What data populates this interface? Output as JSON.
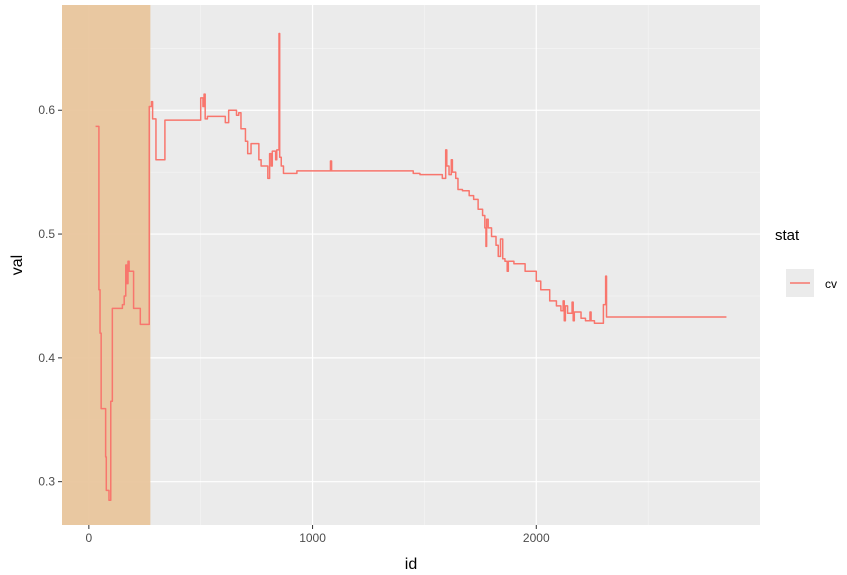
{
  "chart_data": {
    "type": "line",
    "title": "",
    "xlabel": "id",
    "ylabel": "val",
    "xlim": [
      -120,
      3000
    ],
    "ylim": [
      0.265,
      0.685
    ],
    "x_ticks": [
      0,
      1000,
      2000
    ],
    "x_tick_labels": [
      "0",
      "1000",
      "2000"
    ],
    "y_ticks": [
      0.3,
      0.4,
      0.5,
      0.6
    ],
    "y_tick_labels": [
      "0.3",
      "0.4",
      "0.5",
      "0.6"
    ],
    "grid": true,
    "highlight_region": {
      "x_start": -120,
      "x_end": 275,
      "color": "#e8c49a"
    },
    "legend": {
      "title": "stat",
      "position": "right"
    },
    "series": [
      {
        "name": "cv",
        "color": "#f8766d",
        "points": [
          [
            30,
            0.587
          ],
          [
            45,
            0.587
          ],
          [
            45,
            0.455
          ],
          [
            50,
            0.455
          ],
          [
            50,
            0.42
          ],
          [
            55,
            0.42
          ],
          [
            55,
            0.359
          ],
          [
            75,
            0.359
          ],
          [
            75,
            0.32
          ],
          [
            78,
            0.32
          ],
          [
            78,
            0.293
          ],
          [
            90,
            0.293
          ],
          [
            90,
            0.285
          ],
          [
            98,
            0.285
          ],
          [
            98,
            0.365
          ],
          [
            105,
            0.365
          ],
          [
            105,
            0.44
          ],
          [
            150,
            0.44
          ],
          [
            150,
            0.443
          ],
          [
            158,
            0.443
          ],
          [
            158,
            0.45
          ],
          [
            165,
            0.45
          ],
          [
            165,
            0.475
          ],
          [
            170,
            0.475
          ],
          [
            170,
            0.46
          ],
          [
            175,
            0.46
          ],
          [
            175,
            0.478
          ],
          [
            180,
            0.478
          ],
          [
            180,
            0.47
          ],
          [
            200,
            0.47
          ],
          [
            200,
            0.44
          ],
          [
            230,
            0.44
          ],
          [
            230,
            0.427
          ],
          [
            270,
            0.427
          ],
          [
            270,
            0.603
          ],
          [
            280,
            0.603
          ],
          [
            280,
            0.607
          ],
          [
            285,
            0.607
          ],
          [
            285,
            0.593
          ],
          [
            300,
            0.593
          ],
          [
            300,
            0.56
          ],
          [
            340,
            0.56
          ],
          [
            340,
            0.592
          ],
          [
            500,
            0.592
          ],
          [
            500,
            0.61
          ],
          [
            510,
            0.61
          ],
          [
            510,
            0.603
          ],
          [
            515,
            0.603
          ],
          [
            515,
            0.613
          ],
          [
            520,
            0.613
          ],
          [
            520,
            0.593
          ],
          [
            530,
            0.593
          ],
          [
            530,
            0.595
          ],
          [
            610,
            0.595
          ],
          [
            610,
            0.59
          ],
          [
            625,
            0.59
          ],
          [
            625,
            0.6
          ],
          [
            660,
            0.6
          ],
          [
            660,
            0.596
          ],
          [
            670,
            0.596
          ],
          [
            670,
            0.598
          ],
          [
            680,
            0.598
          ],
          [
            680,
            0.585
          ],
          [
            700,
            0.585
          ],
          [
            700,
            0.575
          ],
          [
            710,
            0.575
          ],
          [
            710,
            0.565
          ],
          [
            725,
            0.565
          ],
          [
            725,
            0.573
          ],
          [
            760,
            0.573
          ],
          [
            760,
            0.56
          ],
          [
            770,
            0.56
          ],
          [
            770,
            0.555
          ],
          [
            800,
            0.555
          ],
          [
            800,
            0.545
          ],
          [
            808,
            0.545
          ],
          [
            808,
            0.565
          ],
          [
            815,
            0.565
          ],
          [
            815,
            0.555
          ],
          [
            820,
            0.555
          ],
          [
            820,
            0.567
          ],
          [
            835,
            0.567
          ],
          [
            835,
            0.56
          ],
          [
            840,
            0.56
          ],
          [
            840,
            0.568
          ],
          [
            850,
            0.568
          ],
          [
            850,
            0.662
          ],
          [
            853,
            0.662
          ],
          [
            853,
            0.562
          ],
          [
            860,
            0.562
          ],
          [
            860,
            0.555
          ],
          [
            870,
            0.555
          ],
          [
            870,
            0.549
          ],
          [
            930,
            0.549
          ],
          [
            930,
            0.551
          ],
          [
            1080,
            0.551
          ],
          [
            1080,
            0.559
          ],
          [
            1085,
            0.559
          ],
          [
            1085,
            0.551
          ],
          [
            1450,
            0.551
          ],
          [
            1450,
            0.549
          ],
          [
            1480,
            0.549
          ],
          [
            1480,
            0.548
          ],
          [
            1580,
            0.548
          ],
          [
            1580,
            0.545
          ],
          [
            1595,
            0.545
          ],
          [
            1595,
            0.568
          ],
          [
            1600,
            0.568
          ],
          [
            1600,
            0.555
          ],
          [
            1610,
            0.555
          ],
          [
            1610,
            0.548
          ],
          [
            1620,
            0.548
          ],
          [
            1620,
            0.56
          ],
          [
            1625,
            0.56
          ],
          [
            1625,
            0.55
          ],
          [
            1640,
            0.55
          ],
          [
            1640,
            0.545
          ],
          [
            1650,
            0.545
          ],
          [
            1650,
            0.536
          ],
          [
            1670,
            0.536
          ],
          [
            1670,
            0.535
          ],
          [
            1700,
            0.535
          ],
          [
            1700,
            0.531
          ],
          [
            1720,
            0.531
          ],
          [
            1720,
            0.528
          ],
          [
            1740,
            0.528
          ],
          [
            1740,
            0.52
          ],
          [
            1760,
            0.52
          ],
          [
            1760,
            0.515
          ],
          [
            1770,
            0.515
          ],
          [
            1770,
            0.505
          ],
          [
            1775,
            0.505
          ],
          [
            1775,
            0.49
          ],
          [
            1778,
            0.49
          ],
          [
            1778,
            0.512
          ],
          [
            1785,
            0.512
          ],
          [
            1785,
            0.505
          ],
          [
            1800,
            0.505
          ],
          [
            1800,
            0.498
          ],
          [
            1820,
            0.498
          ],
          [
            1820,
            0.491
          ],
          [
            1830,
            0.491
          ],
          [
            1830,
            0.482
          ],
          [
            1840,
            0.482
          ],
          [
            1840,
            0.496
          ],
          [
            1850,
            0.496
          ],
          [
            1850,
            0.48
          ],
          [
            1860,
            0.48
          ],
          [
            1860,
            0.478
          ],
          [
            1870,
            0.478
          ],
          [
            1870,
            0.47
          ],
          [
            1875,
            0.47
          ],
          [
            1875,
            0.478
          ],
          [
            1900,
            0.478
          ],
          [
            1900,
            0.476
          ],
          [
            1950,
            0.476
          ],
          [
            1950,
            0.47
          ],
          [
            2000,
            0.47
          ],
          [
            2000,
            0.462
          ],
          [
            2020,
            0.462
          ],
          [
            2020,
            0.455
          ],
          [
            2060,
            0.455
          ],
          [
            2060,
            0.446
          ],
          [
            2090,
            0.446
          ],
          [
            2090,
            0.442
          ],
          [
            2110,
            0.442
          ],
          [
            2110,
            0.438
          ],
          [
            2120,
            0.438
          ],
          [
            2120,
            0.446
          ],
          [
            2125,
            0.446
          ],
          [
            2125,
            0.43
          ],
          [
            2130,
            0.43
          ],
          [
            2130,
            0.442
          ],
          [
            2140,
            0.442
          ],
          [
            2140,
            0.436
          ],
          [
            2160,
            0.436
          ],
          [
            2160,
            0.445
          ],
          [
            2165,
            0.445
          ],
          [
            2165,
            0.43
          ],
          [
            2170,
            0.43
          ],
          [
            2170,
            0.437
          ],
          [
            2200,
            0.437
          ],
          [
            2200,
            0.432
          ],
          [
            2220,
            0.432
          ],
          [
            2220,
            0.43
          ],
          [
            2240,
            0.43
          ],
          [
            2240,
            0.437
          ],
          [
            2245,
            0.437
          ],
          [
            2245,
            0.43
          ],
          [
            2260,
            0.43
          ],
          [
            2260,
            0.428
          ],
          [
            2300,
            0.428
          ],
          [
            2300,
            0.443
          ],
          [
            2310,
            0.443
          ],
          [
            2310,
            0.466
          ],
          [
            2314,
            0.466
          ],
          [
            2314,
            0.433
          ],
          [
            2850,
            0.433
          ]
        ]
      }
    ]
  }
}
